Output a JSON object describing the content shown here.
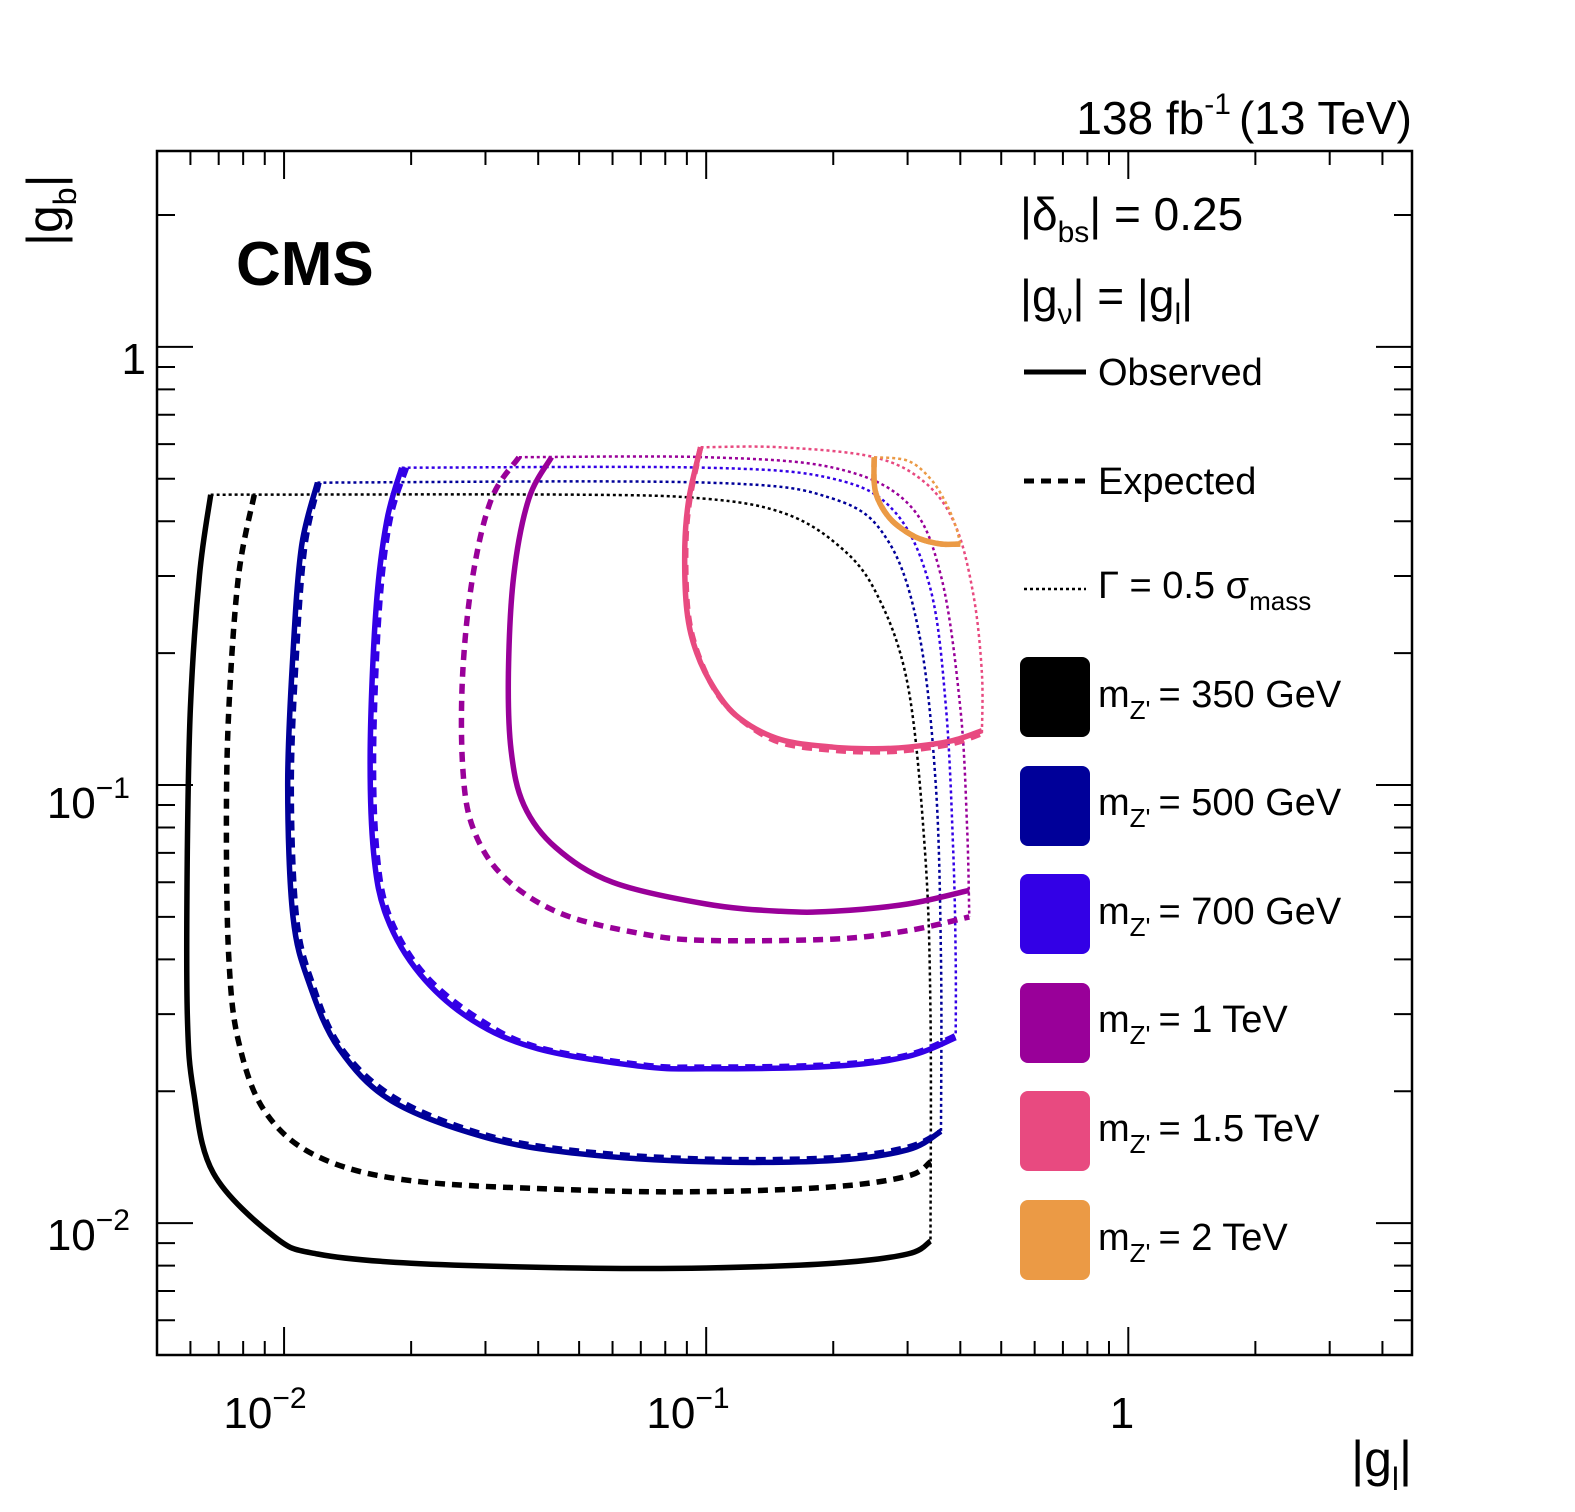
{
  "chart_data": {
    "type": "line",
    "experiment": "CMS",
    "lumi_label": "138 fb",
    "lumi_exp": "-1",
    "energy_label": "(13 TeV)",
    "xlabel": "|g",
    "xlabel_sub": "l",
    "ylabel": "|g",
    "ylabel_sub": "b",
    "xscale": "log",
    "yscale": "log",
    "xlim": [
      0.005,
      4.7
    ],
    "ylim": [
      0.005,
      2.8
    ],
    "x_ticks": [
      {
        "base": "10",
        "exp": "−2",
        "plain": ""
      },
      {
        "base": "10",
        "exp": "−1",
        "plain": ""
      },
      {
        "base": "",
        "exp": "",
        "plain": "1"
      }
    ],
    "y_ticks": [
      {
        "base": "10",
        "exp": "−2",
        "plain": ""
      },
      {
        "base": "10",
        "exp": "−1",
        "plain": ""
      },
      {
        "base": "",
        "exp": "",
        "plain": "1"
      }
    ],
    "annotations": {
      "delta_pre": "|δ",
      "delta_sub": "bs",
      "delta_post": "| = 0.25",
      "gnu_pre": "|g",
      "gnu_sub": "ν",
      "gnu_mid": "| = |g",
      "gnu_sub2": "l",
      "gnu_post": "|"
    },
    "legend": {
      "observed": "Observed",
      "expected": "Expected",
      "width_pre": "Γ = 0.5 σ",
      "width_sub": "mass",
      "mass_prefix": "m",
      "mass_sub": "Z'",
      "masses": [
        {
          "label": "= 350 GeV",
          "color": "#000000"
        },
        {
          "label": "= 500 GeV",
          "color": "#000099"
        },
        {
          "label": "= 700 GeV",
          "color": "#3300e6"
        },
        {
          "label": "= 1 TeV",
          "color": "#990099"
        },
        {
          "label": "= 1.5 TeV",
          "color": "#e84a80"
        },
        {
          "label": "= 2 TeV",
          "color": "#eb9a45"
        }
      ]
    },
    "series": [
      {
        "name": "350 GeV",
        "color": "#000000",
        "observed": [
          [
            0.0067,
            0.46
          ],
          [
            0.0063,
            0.3
          ],
          [
            0.006,
            0.15
          ],
          [
            0.0059,
            0.07
          ],
          [
            0.0059,
            0.03
          ],
          [
            0.0061,
            0.02
          ],
          [
            0.0068,
            0.013
          ],
          [
            0.0095,
            0.0093
          ],
          [
            0.012,
            0.0085
          ],
          [
            0.02,
            0.0081
          ],
          [
            0.05,
            0.0079
          ],
          [
            0.1,
            0.0079
          ],
          [
            0.2,
            0.0081
          ],
          [
            0.3,
            0.0085
          ],
          [
            0.34,
            0.0091
          ]
        ],
        "expected": [
          [
            0.0085,
            0.46
          ],
          [
            0.0078,
            0.3
          ],
          [
            0.0074,
            0.15
          ],
          [
            0.0073,
            0.08
          ],
          [
            0.0074,
            0.04
          ],
          [
            0.0078,
            0.026
          ],
          [
            0.009,
            0.018
          ],
          [
            0.012,
            0.0142
          ],
          [
            0.02,
            0.0125
          ],
          [
            0.05,
            0.0119
          ],
          [
            0.1,
            0.0118
          ],
          [
            0.2,
            0.0121
          ],
          [
            0.3,
            0.0128
          ],
          [
            0.34,
            0.0138
          ]
        ],
        "width_limit": [
          [
            0.0067,
            0.46
          ],
          [
            0.05,
            0.46
          ],
          [
            0.1,
            0.45
          ],
          [
            0.15,
            0.42
          ],
          [
            0.2,
            0.36
          ],
          [
            0.25,
            0.28
          ],
          [
            0.3,
            0.17
          ],
          [
            0.33,
            0.07
          ],
          [
            0.34,
            0.03
          ],
          [
            0.34,
            0.0091
          ]
        ]
      },
      {
        "name": "500 GeV",
        "color": "#000099",
        "observed": [
          [
            0.012,
            0.49
          ],
          [
            0.011,
            0.35
          ],
          [
            0.0105,
            0.2
          ],
          [
            0.0102,
            0.1
          ],
          [
            0.0105,
            0.05
          ],
          [
            0.0115,
            0.035
          ],
          [
            0.0135,
            0.025
          ],
          [
            0.018,
            0.019
          ],
          [
            0.03,
            0.0157
          ],
          [
            0.05,
            0.0144
          ],
          [
            0.1,
            0.0138
          ],
          [
            0.2,
            0.0139
          ],
          [
            0.3,
            0.0147
          ],
          [
            0.36,
            0.0162
          ]
        ],
        "expected": [
          [
            0.0121,
            0.49
          ],
          [
            0.0112,
            0.35
          ],
          [
            0.0107,
            0.2
          ],
          [
            0.0104,
            0.1
          ],
          [
            0.0107,
            0.05
          ],
          [
            0.0117,
            0.035
          ],
          [
            0.0137,
            0.025
          ],
          [
            0.0185,
            0.0192
          ],
          [
            0.03,
            0.0159
          ],
          [
            0.05,
            0.0146
          ],
          [
            0.1,
            0.014
          ],
          [
            0.2,
            0.0141
          ],
          [
            0.3,
            0.0149
          ],
          [
            0.36,
            0.0162
          ]
        ],
        "width_limit": [
          [
            0.012,
            0.49
          ],
          [
            0.1,
            0.49
          ],
          [
            0.2,
            0.45
          ],
          [
            0.27,
            0.36
          ],
          [
            0.32,
            0.22
          ],
          [
            0.35,
            0.1
          ],
          [
            0.36,
            0.04
          ],
          [
            0.36,
            0.0162
          ]
        ]
      },
      {
        "name": "700 GeV",
        "color": "#3300e6",
        "observed": [
          [
            0.019,
            0.53
          ],
          [
            0.0175,
            0.4
          ],
          [
            0.0165,
            0.25
          ],
          [
            0.016,
            0.12
          ],
          [
            0.0163,
            0.07
          ],
          [
            0.0175,
            0.05
          ],
          [
            0.021,
            0.037
          ],
          [
            0.028,
            0.029
          ],
          [
            0.04,
            0.025
          ],
          [
            0.07,
            0.0228
          ],
          [
            0.1,
            0.0225
          ],
          [
            0.2,
            0.0228
          ],
          [
            0.3,
            0.024
          ],
          [
            0.39,
            0.0265
          ]
        ],
        "expected": [
          [
            0.0195,
            0.53
          ],
          [
            0.0178,
            0.4
          ],
          [
            0.0168,
            0.25
          ],
          [
            0.0163,
            0.12
          ],
          [
            0.0166,
            0.07
          ],
          [
            0.0178,
            0.05
          ],
          [
            0.0215,
            0.037
          ],
          [
            0.029,
            0.0292
          ],
          [
            0.04,
            0.0252
          ],
          [
            0.07,
            0.023
          ],
          [
            0.1,
            0.0227
          ],
          [
            0.2,
            0.023
          ],
          [
            0.3,
            0.0242
          ],
          [
            0.39,
            0.0268
          ]
        ],
        "width_limit": [
          [
            0.019,
            0.53
          ],
          [
            0.1,
            0.53
          ],
          [
            0.2,
            0.5
          ],
          [
            0.28,
            0.42
          ],
          [
            0.34,
            0.28
          ],
          [
            0.37,
            0.15
          ],
          [
            0.385,
            0.07
          ],
          [
            0.39,
            0.04
          ],
          [
            0.39,
            0.0268
          ]
        ]
      },
      {
        "name": "1 TeV",
        "color": "#990099",
        "observed": [
          [
            0.043,
            0.56
          ],
          [
            0.038,
            0.45
          ],
          [
            0.035,
            0.3
          ],
          [
            0.034,
            0.18
          ],
          [
            0.0345,
            0.12
          ],
          [
            0.037,
            0.09
          ],
          [
            0.044,
            0.072
          ],
          [
            0.06,
            0.06
          ],
          [
            0.1,
            0.0535
          ],
          [
            0.15,
            0.0515
          ],
          [
            0.2,
            0.0515
          ],
          [
            0.3,
            0.0535
          ],
          [
            0.42,
            0.0575
          ]
        ],
        "expected": [
          [
            0.036,
            0.56
          ],
          [
            0.031,
            0.45
          ],
          [
            0.028,
            0.3
          ],
          [
            0.0265,
            0.18
          ],
          [
            0.0265,
            0.11
          ],
          [
            0.028,
            0.08
          ],
          [
            0.033,
            0.062
          ],
          [
            0.045,
            0.051
          ],
          [
            0.07,
            0.0458
          ],
          [
            0.1,
            0.0442
          ],
          [
            0.2,
            0.0445
          ],
          [
            0.3,
            0.0465
          ],
          [
            0.42,
            0.05
          ]
        ],
        "width_limit": [
          [
            0.036,
            0.56
          ],
          [
            0.1,
            0.56
          ],
          [
            0.2,
            0.53
          ],
          [
            0.3,
            0.44
          ],
          [
            0.36,
            0.3
          ],
          [
            0.4,
            0.15
          ],
          [
            0.415,
            0.08
          ],
          [
            0.42,
            0.05
          ]
        ]
      },
      {
        "name": "1.5 TeV",
        "color": "#e84a80",
        "observed": [
          [
            0.097,
            0.59
          ],
          [
            0.091,
            0.45
          ],
          [
            0.089,
            0.35
          ],
          [
            0.09,
            0.25
          ],
          [
            0.095,
            0.2
          ],
          [
            0.105,
            0.165
          ],
          [
            0.12,
            0.142
          ],
          [
            0.15,
            0.127
          ],
          [
            0.2,
            0.122
          ],
          [
            0.25,
            0.121
          ],
          [
            0.3,
            0.122
          ],
          [
            0.38,
            0.126
          ],
          [
            0.45,
            0.133
          ]
        ],
        "expected": [
          [
            0.097,
            0.59
          ],
          [
            0.0915,
            0.45
          ],
          [
            0.0895,
            0.35
          ],
          [
            0.0905,
            0.25
          ],
          [
            0.0955,
            0.2
          ],
          [
            0.106,
            0.162
          ],
          [
            0.122,
            0.14
          ],
          [
            0.15,
            0.125
          ],
          [
            0.2,
            0.12
          ],
          [
            0.25,
            0.119
          ],
          [
            0.3,
            0.12
          ],
          [
            0.38,
            0.124
          ],
          [
            0.45,
            0.131
          ]
        ],
        "width_limit": [
          [
            0.097,
            0.59
          ],
          [
            0.15,
            0.59
          ],
          [
            0.25,
            0.56
          ],
          [
            0.33,
            0.49
          ],
          [
            0.39,
            0.39
          ],
          [
            0.43,
            0.27
          ],
          [
            0.45,
            0.18
          ],
          [
            0.45,
            0.131
          ]
        ]
      },
      {
        "name": "2 TeV",
        "color": "#eb9a45",
        "observed": [
          [
            0.25,
            0.56
          ],
          [
            0.25,
            0.49
          ],
          [
            0.255,
            0.45
          ],
          [
            0.27,
            0.41
          ],
          [
            0.29,
            0.385
          ],
          [
            0.32,
            0.365
          ],
          [
            0.36,
            0.355
          ],
          [
            0.4,
            0.355
          ]
        ],
        "expected": [
          [
            0.25,
            0.56
          ],
          [
            0.25,
            0.49
          ],
          [
            0.255,
            0.45
          ],
          [
            0.27,
            0.41
          ],
          [
            0.29,
            0.385
          ],
          [
            0.32,
            0.365
          ],
          [
            0.36,
            0.355
          ],
          [
            0.4,
            0.355
          ]
        ],
        "width_limit": [
          [
            0.25,
            0.56
          ],
          [
            0.3,
            0.55
          ],
          [
            0.34,
            0.5
          ],
          [
            0.37,
            0.44
          ],
          [
            0.39,
            0.39
          ],
          [
            0.4,
            0.355
          ]
        ]
      }
    ]
  }
}
